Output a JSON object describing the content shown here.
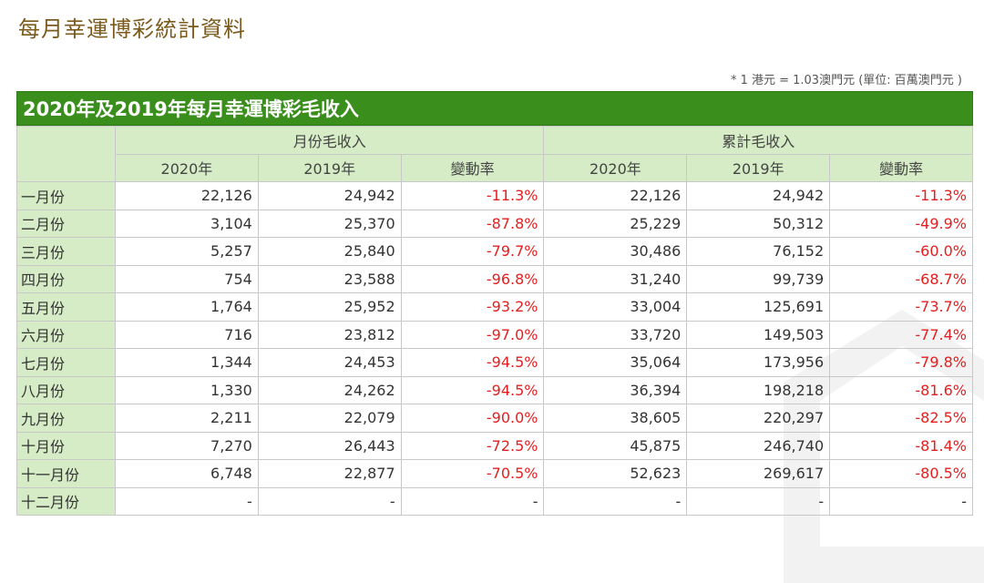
{
  "page": {
    "title": "每月幸運博彩統計資料",
    "note": "* 1 港元 = 1.03澳門元 (單位: 百萬澳門元 )"
  },
  "table": {
    "heading": "2020年及2019年每月幸運博彩毛收入",
    "group_monthly": "月份毛收入",
    "group_cumulative": "累計毛收入",
    "col_2020": "2020年",
    "col_2019": "2019年",
    "col_change": "變動率",
    "rows": [
      {
        "month": "一月份",
        "m2020": "22,126",
        "m2019": "24,942",
        "mchg": "-11.3%",
        "c2020": "22,126",
        "c2019": "24,942",
        "cchg": "-11.3%"
      },
      {
        "month": "二月份",
        "m2020": "3,104",
        "m2019": "25,370",
        "mchg": "-87.8%",
        "c2020": "25,229",
        "c2019": "50,312",
        "cchg": "-49.9%"
      },
      {
        "month": "三月份",
        "m2020": "5,257",
        "m2019": "25,840",
        "mchg": "-79.7%",
        "c2020": "30,486",
        "c2019": "76,152",
        "cchg": "-60.0%"
      },
      {
        "month": "四月份",
        "m2020": "754",
        "m2019": "23,588",
        "mchg": "-96.8%",
        "c2020": "31,240",
        "c2019": "99,739",
        "cchg": "-68.7%"
      },
      {
        "month": "五月份",
        "m2020": "1,764",
        "m2019": "25,952",
        "mchg": "-93.2%",
        "c2020": "33,004",
        "c2019": "125,691",
        "cchg": "-73.7%"
      },
      {
        "month": "六月份",
        "m2020": "716",
        "m2019": "23,812",
        "mchg": "-97.0%",
        "c2020": "33,720",
        "c2019": "149,503",
        "cchg": "-77.4%"
      },
      {
        "month": "七月份",
        "m2020": "1,344",
        "m2019": "24,453",
        "mchg": "-94.5%",
        "c2020": "35,064",
        "c2019": "173,956",
        "cchg": "-79.8%"
      },
      {
        "month": "八月份",
        "m2020": "1,330",
        "m2019": "24,262",
        "mchg": "-94.5%",
        "c2020": "36,394",
        "c2019": "198,218",
        "cchg": "-81.6%"
      },
      {
        "month": "九月份",
        "m2020": "2,211",
        "m2019": "22,079",
        "mchg": "-90.0%",
        "c2020": "38,605",
        "c2019": "220,297",
        "cchg": "-82.5%"
      },
      {
        "month": "十月份",
        "m2020": "7,270",
        "m2019": "26,443",
        "mchg": "-72.5%",
        "c2020": "45,875",
        "c2019": "246,740",
        "cchg": "-81.4%"
      },
      {
        "month": "十一月份",
        "m2020": "6,748",
        "m2019": "22,877",
        "mchg": "-70.5%",
        "c2020": "52,623",
        "c2019": "269,617",
        "cchg": "-80.5%"
      },
      {
        "month": "十二月份",
        "m2020": "-",
        "m2019": "-",
        "mchg": "-",
        "c2020": "-",
        "c2019": "-",
        "cchg": "-"
      }
    ]
  },
  "colors": {
    "header_bar": "#3a8f1c",
    "header_cells": "#d6ecc6",
    "negative": "#e41e1e",
    "title": "#7b5a1c"
  }
}
